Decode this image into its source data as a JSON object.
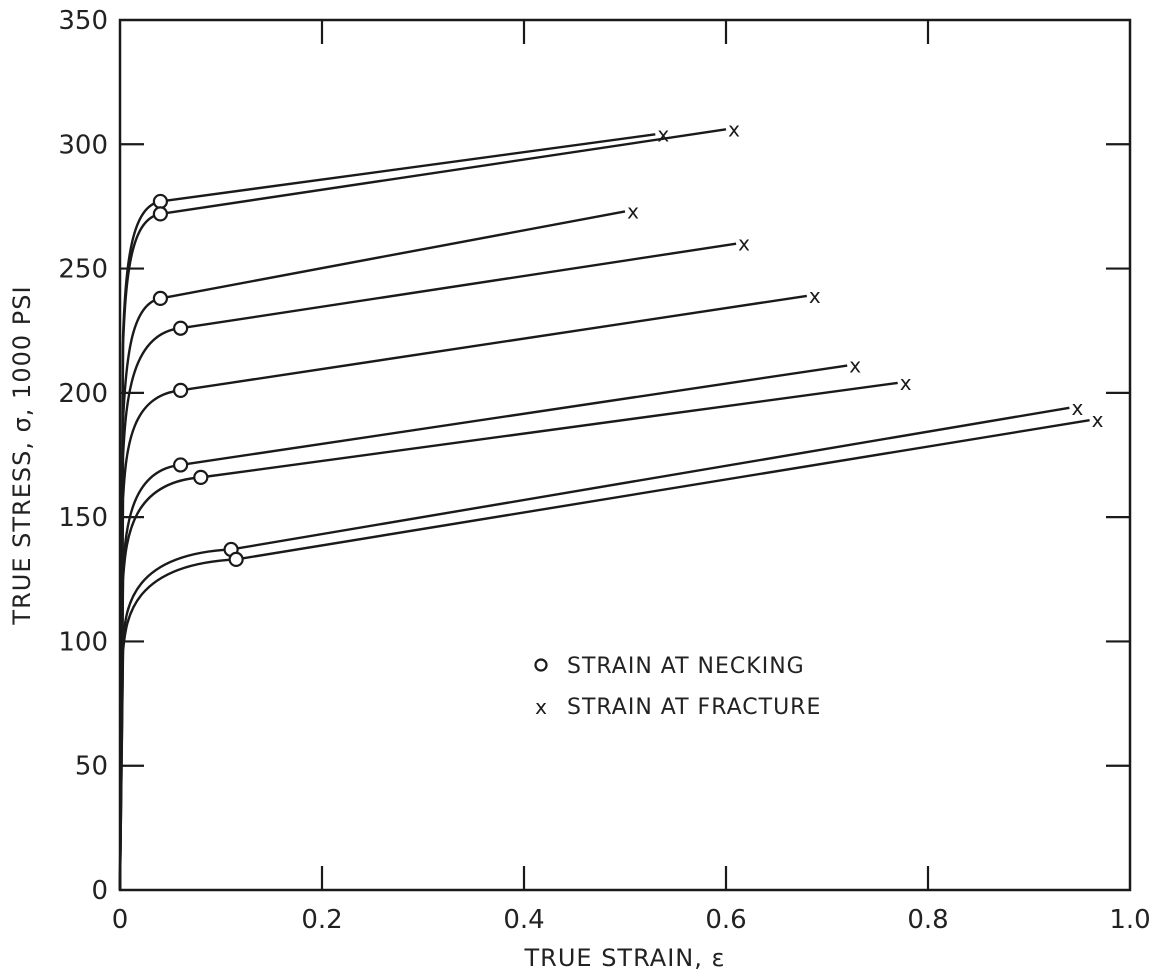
{
  "chart_data": {
    "type": "line",
    "title": "",
    "xlabel": "TRUE STRAIN, ε",
    "ylabel": "TRUE STRESS, σ, 1000 PSI",
    "xlim": [
      0,
      1.0
    ],
    "ylim": [
      0,
      350
    ],
    "x_ticks": [
      0,
      0.2,
      0.4,
      0.6,
      0.8,
      1.0
    ],
    "x_tick_labels": [
      "0",
      "0.2",
      "0.4",
      "0.6",
      "0.8",
      "1.0"
    ],
    "y_ticks": [
      0,
      50,
      100,
      150,
      200,
      250,
      300,
      350
    ],
    "y_tick_labels": [
      "0",
      "50",
      "100",
      "150",
      "200",
      "250",
      "300",
      "350"
    ],
    "grid": false,
    "legend": {
      "position": "center-right",
      "entries": [
        {
          "symbol": "o",
          "label": "STRAIN AT NECKING"
        },
        {
          "symbol": "x",
          "label": "STRAIN AT FRACTURE"
        }
      ]
    },
    "series": [
      {
        "yield": 262,
        "necking": [
          0.04,
          277
        ],
        "fracture": [
          0.53,
          304
        ]
      },
      {
        "yield": 258,
        "necking": [
          0.04,
          272
        ],
        "fracture": [
          0.6,
          306
        ]
      },
      {
        "yield": 222,
        "necking": [
          0.04,
          238
        ],
        "fracture": [
          0.5,
          273
        ]
      },
      {
        "yield": 205,
        "necking": [
          0.06,
          226
        ],
        "fracture": [
          0.61,
          260
        ]
      },
      {
        "yield": 185,
        "necking": [
          0.06,
          201
        ],
        "fracture": [
          0.68,
          239
        ]
      },
      {
        "yield": 152,
        "necking": [
          0.06,
          171
        ],
        "fracture": [
          0.72,
          211
        ]
      },
      {
        "yield": 147,
        "necking": [
          0.08,
          166
        ],
        "fracture": [
          0.77,
          204
        ]
      },
      {
        "yield": 118,
        "necking": [
          0.11,
          137
        ],
        "fracture": [
          0.94,
          194
        ]
      },
      {
        "yield": 113,
        "necking": [
          0.115,
          133
        ],
        "fracture": [
          0.96,
          189
        ]
      }
    ]
  }
}
